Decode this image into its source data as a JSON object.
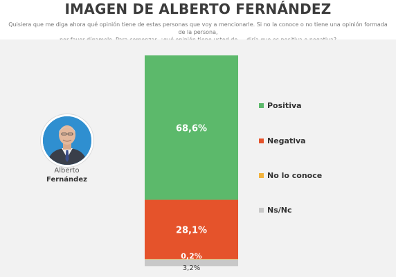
{
  "header": {
    "title": "IMAGEN DE ALBERTO FERNÁNDEZ",
    "subtitle_line1": "Quisiera que me diga ahora qué opinión tiene de estas personas que voy a mencionarle. Si no la conoce o no tiene una opinión formada de la persona,",
    "subtitle_line2": "por favor dígamelo. Para comenzar, ¿qué opinión tiene usted de..., diría que es positiva o negativa?"
  },
  "person": {
    "first_name": "Alberto",
    "last_name": "Fernández"
  },
  "chart_data": {
    "type": "bar",
    "stacked": true,
    "orientation": "vertical",
    "categories": [
      "Alberto Fernández"
    ],
    "series": [
      {
        "name": "Positiva",
        "values": [
          68.6
        ],
        "label": "68,6%",
        "color": "#5cb96b"
      },
      {
        "name": "Negativa",
        "values": [
          28.1
        ],
        "label": "28,1%",
        "color": "#e5532b"
      },
      {
        "name": "No lo conoce",
        "values": [
          0.2
        ],
        "label": "0,2%",
        "color": "#f2b33d"
      },
      {
        "name": "Ns/Nc",
        "values": [
          3.2
        ],
        "label": "3,2%",
        "color": "#c8c8c8"
      }
    ],
    "ylim": [
      0,
      100
    ],
    "grid": false,
    "legend_position": "right"
  }
}
